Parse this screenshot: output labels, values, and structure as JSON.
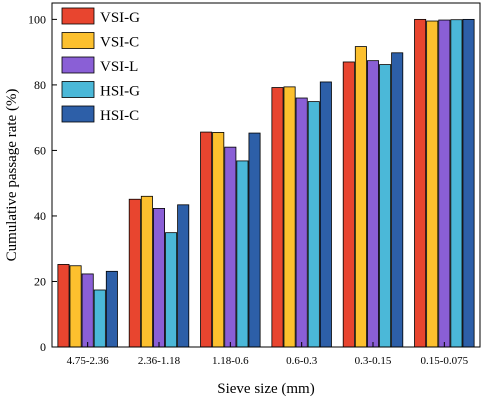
{
  "chart_data": {
    "type": "bar",
    "xlabel": "Sieve size (mm)",
    "ylabel": "Cumulative passage rate (%)",
    "ylim": [
      0,
      105
    ],
    "yticks": [
      0,
      20,
      40,
      60,
      80,
      100
    ],
    "grid": false,
    "legend_position": "top-left",
    "categories": [
      "4.75-2.36",
      "2.36-1.18",
      "1.18-0.6",
      "0.6-0.3",
      "0.3-0.15",
      "0.15-0.075"
    ],
    "series": [
      {
        "name": "VSI-G",
        "color": "#e8452f",
        "values": [
          25.2,
          45.1,
          65.6,
          79.2,
          87.0,
          100.0
        ]
      },
      {
        "name": "VSI-C",
        "color": "#fcc02e",
        "values": [
          24.8,
          46.0,
          65.5,
          79.4,
          91.7,
          99.5
        ]
      },
      {
        "name": "VSI-L",
        "color": "#8a5fd6",
        "values": [
          22.3,
          42.3,
          61.0,
          76.0,
          87.4,
          99.8
        ]
      },
      {
        "name": "HSI-G",
        "color": "#4bb8d8",
        "values": [
          17.4,
          34.9,
          56.8,
          74.9,
          86.2,
          99.9
        ]
      },
      {
        "name": "HSI-C",
        "color": "#2d5fa8",
        "values": [
          23.1,
          43.4,
          65.3,
          80.9,
          89.8,
          100.0
        ]
      }
    ]
  }
}
